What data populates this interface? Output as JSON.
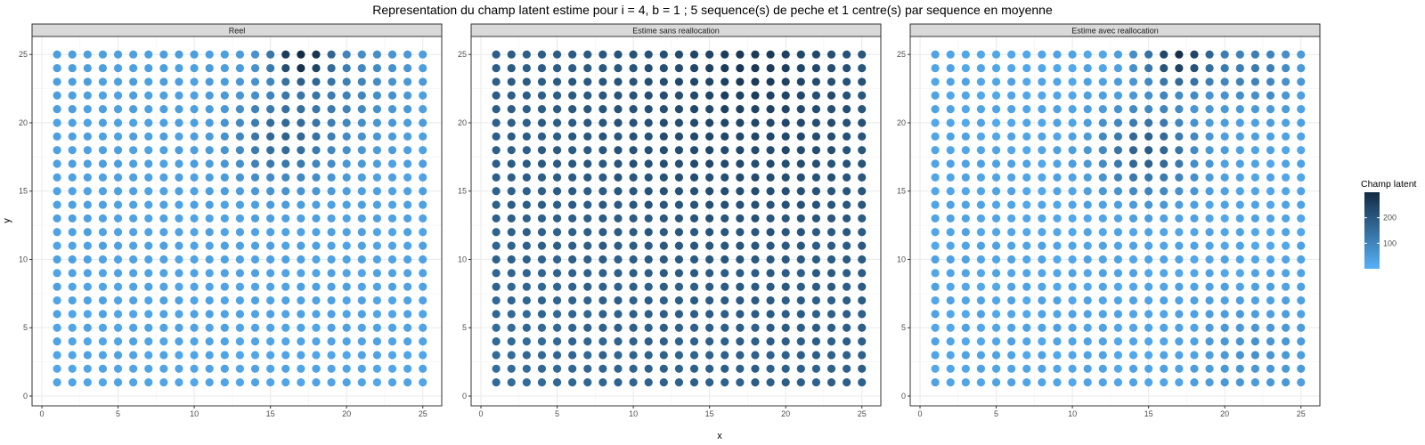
{
  "chart_data": {
    "type": "scatter",
    "title": "Representation du champ latent estime pour i = 4, b = 1 ; 5 sequence(s) de peche et 1 centre(s) par sequence en moyenne",
    "xlabel": "x",
    "ylabel": "y",
    "xlim": [
      0,
      25.6
    ],
    "ylim": [
      0,
      25.6
    ],
    "x_ticks": [
      0,
      5,
      10,
      15,
      20,
      25
    ],
    "y_ticks": [
      0,
      5,
      10,
      15,
      20,
      25
    ],
    "grid_x": [
      1,
      2,
      3,
      4,
      5,
      6,
      7,
      8,
      9,
      10,
      11,
      12,
      13,
      14,
      15,
      16,
      17,
      18,
      19,
      20,
      21,
      22,
      23,
      24,
      25
    ],
    "grid_y": [
      1,
      2,
      3,
      4,
      5,
      6,
      7,
      8,
      9,
      10,
      11,
      12,
      13,
      14,
      15,
      16,
      17,
      18,
      19,
      20,
      21,
      22,
      23,
      24,
      25
    ],
    "grid": true,
    "panels": [
      {
        "title": "Reel",
        "field": "real"
      },
      {
        "title": "Estime sans reallocation",
        "field": "no_realloc"
      },
      {
        "title": "Estime avec reallocation",
        "field": "realloc"
      }
    ],
    "legend": {
      "title": "Champ latent",
      "position": "right",
      "range": [
        0,
        300
      ],
      "ticks": [
        100,
        200
      ],
      "low_color": "#56B1F7",
      "high_color": "#132B43"
    }
  },
  "colors": {
    "background": "#ffffff",
    "strip_fill": "#D9D9D9",
    "panel_border": "#333333",
    "grid_line": "#EBEBEB",
    "axis_text": "#4D4D4D",
    "low": "#56B1F7",
    "high": "#132B43"
  }
}
